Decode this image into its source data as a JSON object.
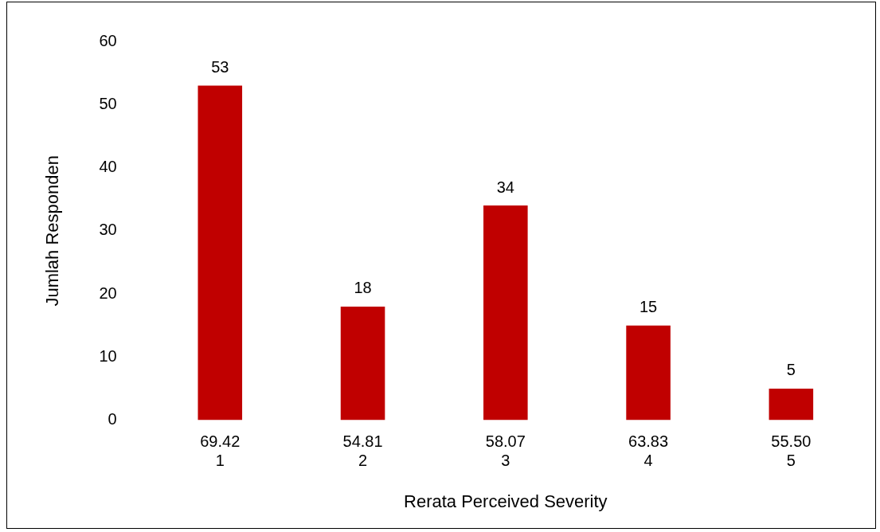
{
  "chart_data": {
    "type": "bar",
    "xlabel": "Rerata Perceived Severity",
    "ylabel": "Jumlah Responden",
    "categories": [
      "69.42\n1",
      "54.81\n2",
      "58.07\n3",
      "63.83\n4",
      "55.50\n5"
    ],
    "values": [
      53,
      18,
      34,
      15,
      5
    ],
    "color": "#c00000",
    "ylim": [
      0,
      60
    ],
    "yticks": [
      0,
      10,
      20,
      30,
      40,
      50,
      60
    ],
    "grid": false,
    "legend": false,
    "data_labels": true
  }
}
